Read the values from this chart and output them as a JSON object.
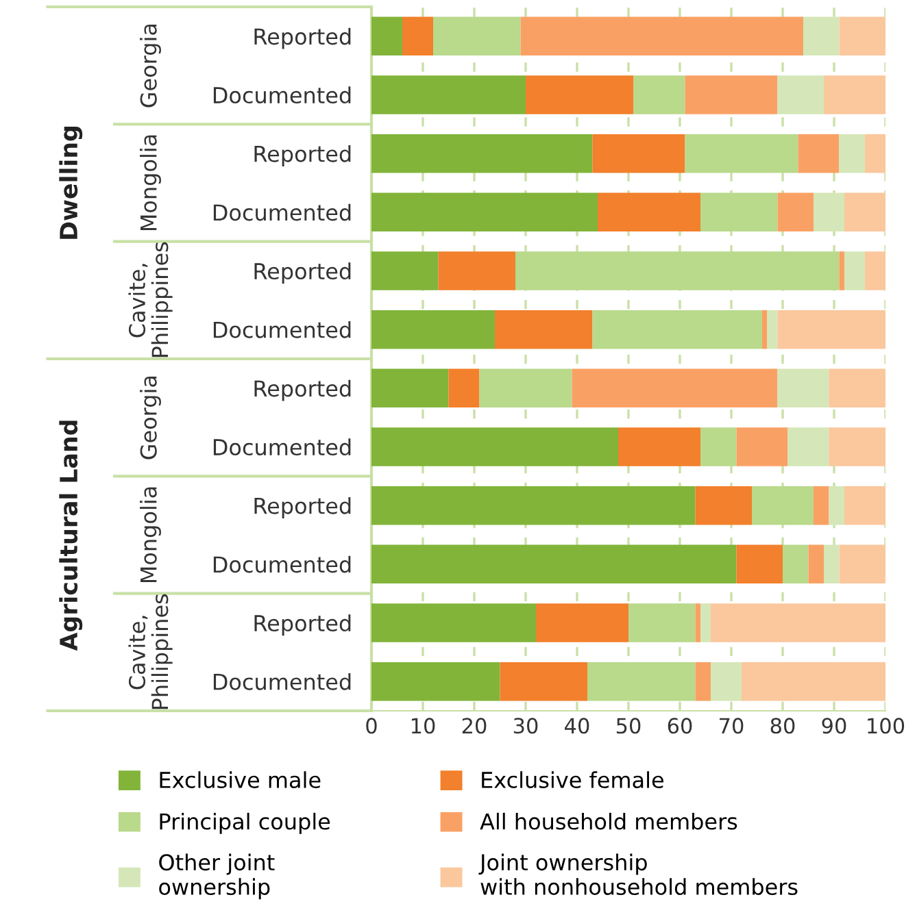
{
  "chart_data": {
    "type": "bar",
    "orientation": "horizontal",
    "stacked": true,
    "categories": [
      "Reported",
      "Documented",
      "Reported",
      "Documented",
      "Reported",
      "Documented",
      "Reported",
      "Documented",
      "Reported",
      "Documented",
      "Reported",
      "Documented"
    ],
    "series": [
      {
        "name": "Exclusive male",
        "color": "#82b43a",
        "values": [
          6,
          30,
          43,
          44,
          13,
          24,
          15,
          48,
          63,
          71,
          32,
          25
        ]
      },
      {
        "name": "Exclusive female",
        "color": "#f2802c",
        "values": [
          6,
          21,
          18,
          20,
          15,
          19,
          6,
          16,
          11,
          9,
          18,
          17
        ]
      },
      {
        "name": "Principal couple",
        "color": "#b9d98b",
        "values": [
          17,
          10,
          22,
          15,
          63,
          33,
          18,
          7,
          12,
          5,
          13,
          21
        ]
      },
      {
        "name": "All household members",
        "color": "#f9a164",
        "values": [
          55,
          18,
          8,
          7,
          1,
          1,
          40,
          10,
          3,
          3,
          1,
          3
        ]
      },
      {
        "name": "Other joint\nownership",
        "color": "#d5e7b8",
        "values": [
          7,
          9,
          5,
          6,
          4,
          2,
          10,
          8,
          3,
          3,
          2,
          6
        ]
      },
      {
        "name": "Joint ownership\nwith nonhousehold members",
        "color": "#fbc79d",
        "values": [
          9,
          12,
          4,
          8,
          4,
          21,
          11,
          11,
          8,
          9,
          34,
          28
        ]
      }
    ],
    "annotations": [
      "Georgia",
      "Mongolia",
      "Cavite,\nPhilippines",
      "Georgia",
      "Mongolia",
      "Cavite,\nPhilippines",
      "Dwelling",
      "Agricultural Land"
    ],
    "xlim": [
      0,
      100
    ],
    "xticks": [
      0,
      10,
      20,
      30,
      40,
      50,
      60,
      70,
      80,
      90,
      100
    ],
    "grid": "x",
    "legend": "bottom"
  }
}
